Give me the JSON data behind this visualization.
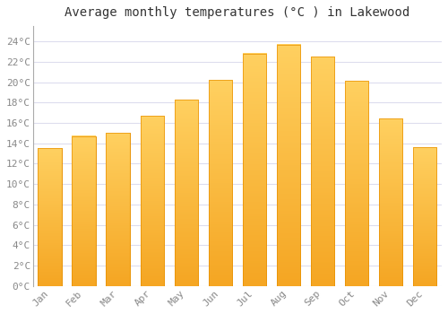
{
  "title": "Average monthly temperatures (°C ) in Lakewood",
  "months": [
    "Jan",
    "Feb",
    "Mar",
    "Apr",
    "May",
    "Jun",
    "Jul",
    "Aug",
    "Sep",
    "Oct",
    "Nov",
    "Dec"
  ],
  "values": [
    13.5,
    14.7,
    15.0,
    16.7,
    18.3,
    20.2,
    22.8,
    23.7,
    22.5,
    20.1,
    16.4,
    13.6
  ],
  "bar_color": "#FFAA00",
  "bar_edge_color": "#E89000",
  "background_color": "#FFFFFF",
  "grid_color": "#DDDDEE",
  "text_color": "#888888",
  "title_color": "#333333",
  "ylim": [
    0,
    25.5
  ],
  "yticks": [
    0,
    2,
    4,
    6,
    8,
    10,
    12,
    14,
    16,
    18,
    20,
    22,
    24
  ],
  "title_fontsize": 10,
  "tick_fontsize": 8,
  "bar_width": 0.7
}
